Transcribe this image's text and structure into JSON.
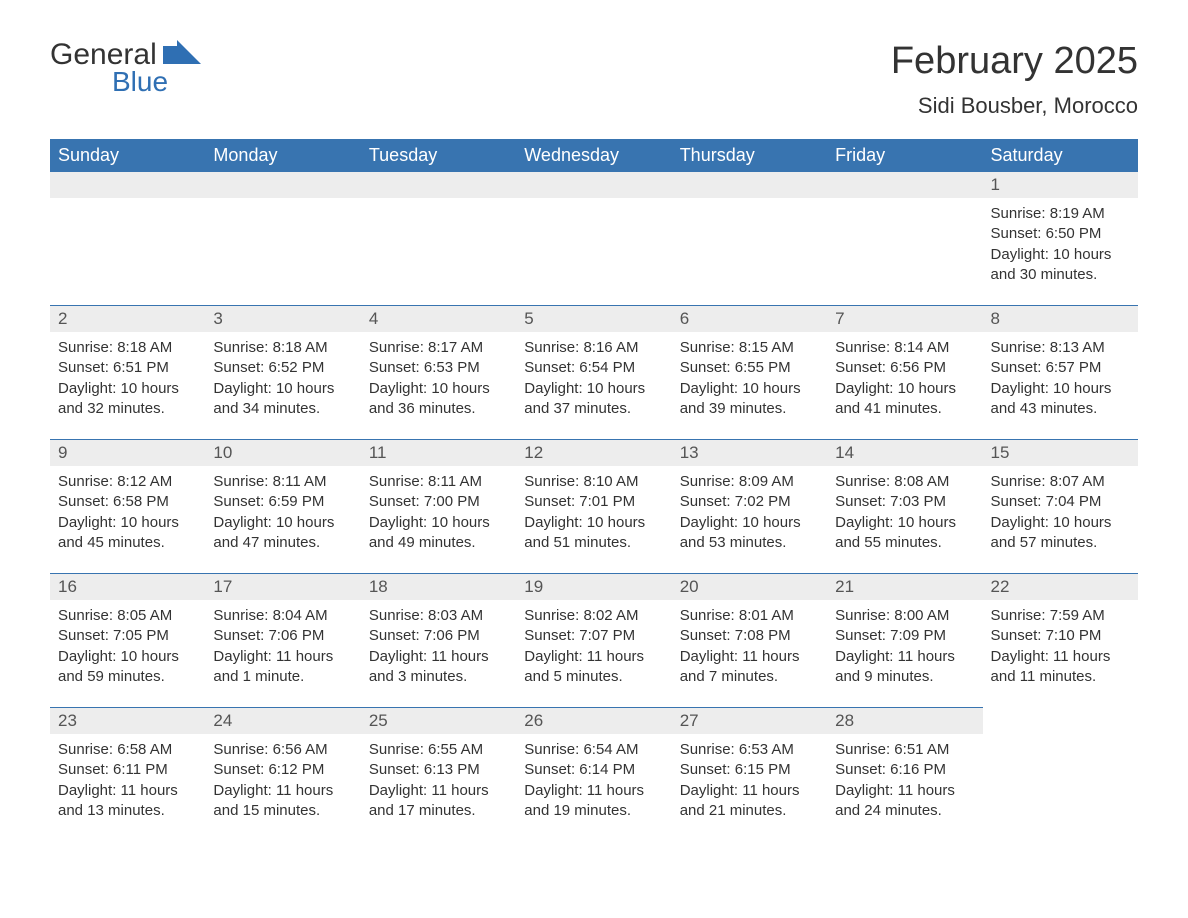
{
  "logo": {
    "general": "General",
    "blue": "Blue"
  },
  "header": {
    "month_title": "February 2025",
    "location": "Sidi Bousber, Morocco"
  },
  "colors": {
    "header_bg": "#3874b0",
    "header_text": "#ffffff",
    "day_bar_bg": "#ededed",
    "day_bar_border": "#3874b0",
    "body_text": "#333333",
    "logo_blue": "#2f6fb3",
    "background": "#ffffff"
  },
  "typography": {
    "month_title_fontsize": 38,
    "location_fontsize": 22,
    "weekday_fontsize": 18,
    "daynum_fontsize": 17,
    "cell_fontsize": 15
  },
  "weekdays": [
    "Sunday",
    "Monday",
    "Tuesday",
    "Wednesday",
    "Thursday",
    "Friday",
    "Saturday"
  ],
  "weeks": [
    [
      null,
      null,
      null,
      null,
      null,
      null,
      {
        "d": "1",
        "sunrise": "Sunrise: 8:19 AM",
        "sunset": "Sunset: 6:50 PM",
        "daylight": "Daylight: 10 hours and 30 minutes."
      }
    ],
    [
      {
        "d": "2",
        "sunrise": "Sunrise: 8:18 AM",
        "sunset": "Sunset: 6:51 PM",
        "daylight": "Daylight: 10 hours and 32 minutes."
      },
      {
        "d": "3",
        "sunrise": "Sunrise: 8:18 AM",
        "sunset": "Sunset: 6:52 PM",
        "daylight": "Daylight: 10 hours and 34 minutes."
      },
      {
        "d": "4",
        "sunrise": "Sunrise: 8:17 AM",
        "sunset": "Sunset: 6:53 PM",
        "daylight": "Daylight: 10 hours and 36 minutes."
      },
      {
        "d": "5",
        "sunrise": "Sunrise: 8:16 AM",
        "sunset": "Sunset: 6:54 PM",
        "daylight": "Daylight: 10 hours and 37 minutes."
      },
      {
        "d": "6",
        "sunrise": "Sunrise: 8:15 AM",
        "sunset": "Sunset: 6:55 PM",
        "daylight": "Daylight: 10 hours and 39 minutes."
      },
      {
        "d": "7",
        "sunrise": "Sunrise: 8:14 AM",
        "sunset": "Sunset: 6:56 PM",
        "daylight": "Daylight: 10 hours and 41 minutes."
      },
      {
        "d": "8",
        "sunrise": "Sunrise: 8:13 AM",
        "sunset": "Sunset: 6:57 PM",
        "daylight": "Daylight: 10 hours and 43 minutes."
      }
    ],
    [
      {
        "d": "9",
        "sunrise": "Sunrise: 8:12 AM",
        "sunset": "Sunset: 6:58 PM",
        "daylight": "Daylight: 10 hours and 45 minutes."
      },
      {
        "d": "10",
        "sunrise": "Sunrise: 8:11 AM",
        "sunset": "Sunset: 6:59 PM",
        "daylight": "Daylight: 10 hours and 47 minutes."
      },
      {
        "d": "11",
        "sunrise": "Sunrise: 8:11 AM",
        "sunset": "Sunset: 7:00 PM",
        "daylight": "Daylight: 10 hours and 49 minutes."
      },
      {
        "d": "12",
        "sunrise": "Sunrise: 8:10 AM",
        "sunset": "Sunset: 7:01 PM",
        "daylight": "Daylight: 10 hours and 51 minutes."
      },
      {
        "d": "13",
        "sunrise": "Sunrise: 8:09 AM",
        "sunset": "Sunset: 7:02 PM",
        "daylight": "Daylight: 10 hours and 53 minutes."
      },
      {
        "d": "14",
        "sunrise": "Sunrise: 8:08 AM",
        "sunset": "Sunset: 7:03 PM",
        "daylight": "Daylight: 10 hours and 55 minutes."
      },
      {
        "d": "15",
        "sunrise": "Sunrise: 8:07 AM",
        "sunset": "Sunset: 7:04 PM",
        "daylight": "Daylight: 10 hours and 57 minutes."
      }
    ],
    [
      {
        "d": "16",
        "sunrise": "Sunrise: 8:05 AM",
        "sunset": "Sunset: 7:05 PM",
        "daylight": "Daylight: 10 hours and 59 minutes."
      },
      {
        "d": "17",
        "sunrise": "Sunrise: 8:04 AM",
        "sunset": "Sunset: 7:06 PM",
        "daylight": "Daylight: 11 hours and 1 minute."
      },
      {
        "d": "18",
        "sunrise": "Sunrise: 8:03 AM",
        "sunset": "Sunset: 7:06 PM",
        "daylight": "Daylight: 11 hours and 3 minutes."
      },
      {
        "d": "19",
        "sunrise": "Sunrise: 8:02 AM",
        "sunset": "Sunset: 7:07 PM",
        "daylight": "Daylight: 11 hours and 5 minutes."
      },
      {
        "d": "20",
        "sunrise": "Sunrise: 8:01 AM",
        "sunset": "Sunset: 7:08 PM",
        "daylight": "Daylight: 11 hours and 7 minutes."
      },
      {
        "d": "21",
        "sunrise": "Sunrise: 8:00 AM",
        "sunset": "Sunset: 7:09 PM",
        "daylight": "Daylight: 11 hours and 9 minutes."
      },
      {
        "d": "22",
        "sunrise": "Sunrise: 7:59 AM",
        "sunset": "Sunset: 7:10 PM",
        "daylight": "Daylight: 11 hours and 11 minutes."
      }
    ],
    [
      {
        "d": "23",
        "sunrise": "Sunrise: 6:58 AM",
        "sunset": "Sunset: 6:11 PM",
        "daylight": "Daylight: 11 hours and 13 minutes."
      },
      {
        "d": "24",
        "sunrise": "Sunrise: 6:56 AM",
        "sunset": "Sunset: 6:12 PM",
        "daylight": "Daylight: 11 hours and 15 minutes."
      },
      {
        "d": "25",
        "sunrise": "Sunrise: 6:55 AM",
        "sunset": "Sunset: 6:13 PM",
        "daylight": "Daylight: 11 hours and 17 minutes."
      },
      {
        "d": "26",
        "sunrise": "Sunrise: 6:54 AM",
        "sunset": "Sunset: 6:14 PM",
        "daylight": "Daylight: 11 hours and 19 minutes."
      },
      {
        "d": "27",
        "sunrise": "Sunrise: 6:53 AM",
        "sunset": "Sunset: 6:15 PM",
        "daylight": "Daylight: 11 hours and 21 minutes."
      },
      {
        "d": "28",
        "sunrise": "Sunrise: 6:51 AM",
        "sunset": "Sunset: 6:16 PM",
        "daylight": "Daylight: 11 hours and 24 minutes."
      },
      null
    ]
  ]
}
